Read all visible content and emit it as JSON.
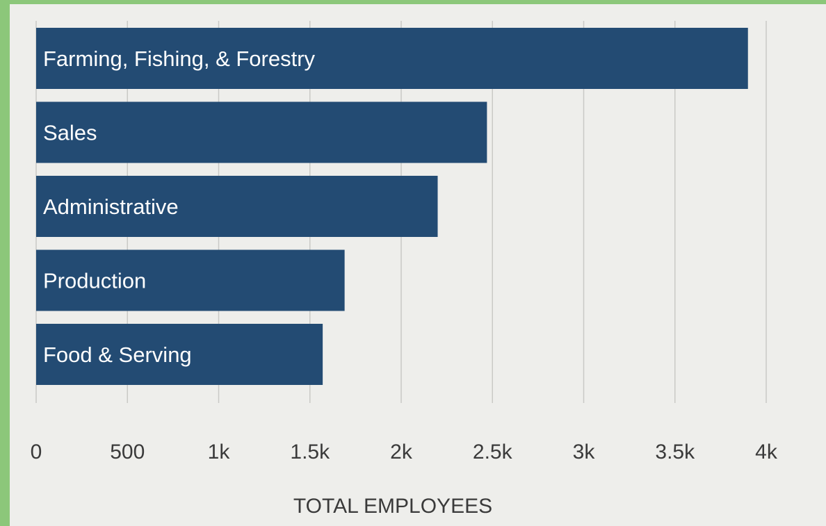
{
  "chart_data": {
    "type": "bar",
    "orientation": "horizontal",
    "categories": [
      "Farming, Fishing, & Forestry",
      "Sales",
      "Administrative",
      "Production",
      "Food & Serving"
    ],
    "values": [
      3900,
      2470,
      2200,
      1690,
      1570
    ],
    "xlabel": "TOTAL EMPLOYEES",
    "ylabel": "",
    "xlim": [
      0,
      4000
    ],
    "xticks": [
      0,
      500,
      1000,
      1500,
      2000,
      2500,
      3000,
      3500,
      4000
    ],
    "xtick_labels": [
      "0",
      "500",
      "1k",
      "1.5k",
      "2k",
      "2.5k",
      "3k",
      "3.5k",
      "4k"
    ],
    "grid": true,
    "legend": "none",
    "colors": {
      "bar": "#234b73",
      "bar_text": "#ffffff",
      "grid": "#c9c9c6",
      "axis_text": "#3a3a3a",
      "frame": "#8cc77a",
      "background": "#eeeeeb"
    }
  }
}
